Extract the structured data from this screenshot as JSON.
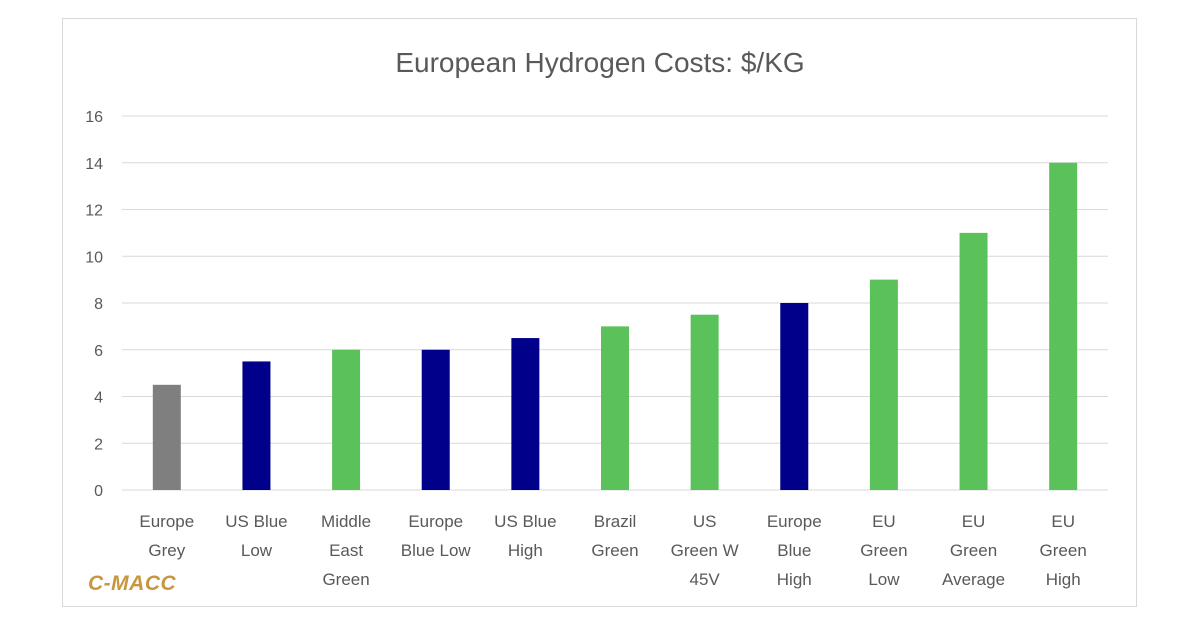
{
  "branding": {
    "logo_text": "C-MACC",
    "logo_color": "#c8963e"
  },
  "chart_data": {
    "type": "bar",
    "title": "European Hydrogen Costs: $/KG",
    "xlabel": "",
    "ylabel": "",
    "ylim": [
      0,
      16
    ],
    "yticks": [
      0,
      2,
      4,
      6,
      8,
      10,
      12,
      14,
      16
    ],
    "grid": true,
    "legend": "none",
    "categories": [
      [
        "Europe",
        "Grey"
      ],
      [
        "US Blue",
        "Low"
      ],
      [
        "Middle",
        "East",
        "Green"
      ],
      [
        "Europe",
        "Blue Low"
      ],
      [
        "US Blue",
        "High"
      ],
      [
        "Brazil",
        "Green"
      ],
      [
        "US",
        "Green W",
        "45V"
      ],
      [
        "Europe",
        "Blue",
        "High"
      ],
      [
        "EU",
        "Green",
        "Low"
      ],
      [
        "EU",
        "Green",
        "Average"
      ],
      [
        "EU",
        "Green",
        "High"
      ]
    ],
    "values": [
      4.5,
      5.5,
      6,
      6,
      6.5,
      7,
      7.5,
      8,
      9,
      11,
      14
    ],
    "bar_colors": [
      "#7f7f7f",
      "#00008b",
      "#5bc25b",
      "#00008b",
      "#00008b",
      "#5bc25b",
      "#5bc25b",
      "#00008b",
      "#5bc25b",
      "#5bc25b",
      "#5bc25b"
    ],
    "grid_color": "#d9d9d9",
    "text_color": "#595959"
  }
}
